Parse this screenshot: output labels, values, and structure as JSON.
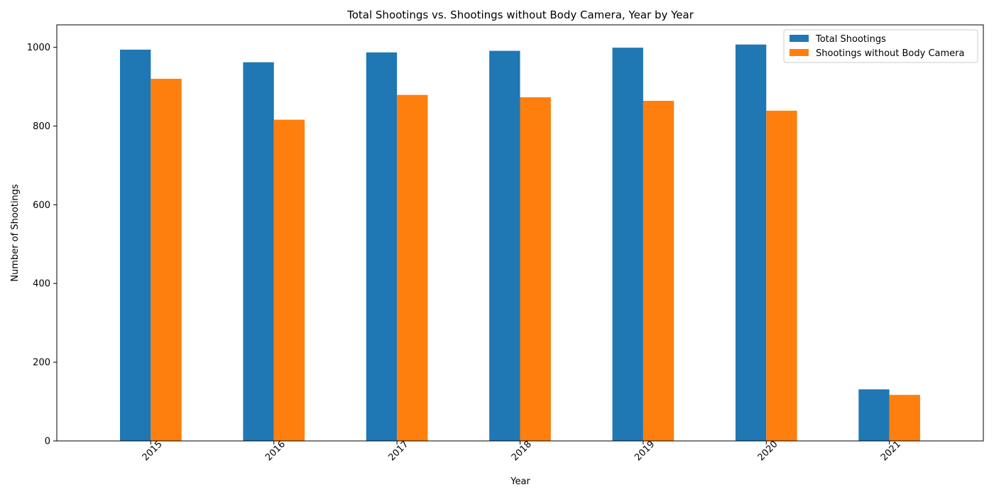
{
  "chart_data": {
    "type": "bar",
    "title": "Total Shootings vs. Shootings without Body Camera, Year by Year",
    "xlabel": "Year",
    "ylabel": "Number of Shootings",
    "categories": [
      "2015",
      "2016",
      "2017",
      "2018",
      "2019",
      "2020",
      "2021"
    ],
    "series": [
      {
        "name": "Total Shootings",
        "color": "#1f77b4",
        "values": [
          994,
          962,
          987,
          991,
          999,
          1007,
          131
        ]
      },
      {
        "name": "Shootings without Body Camera",
        "color": "#ff7f0e",
        "values": [
          920,
          816,
          879,
          873,
          864,
          839,
          117
        ]
      }
    ],
    "ylim": [
      0,
      1057
    ],
    "yticks": [
      0,
      200,
      400,
      600,
      800,
      1000
    ],
    "grid": false,
    "legend": "top-right",
    "xtick_rotation": 45
  }
}
